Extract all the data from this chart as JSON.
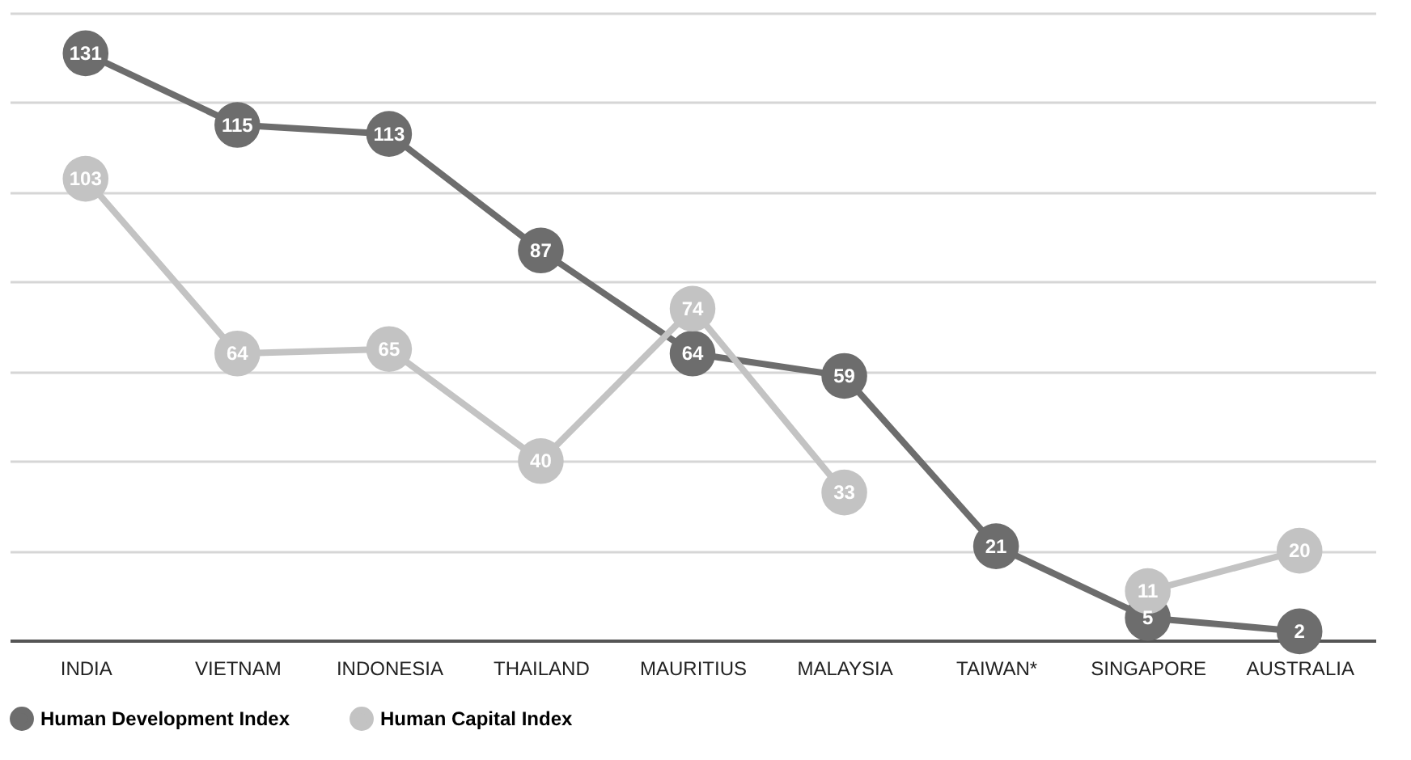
{
  "chart_data": {
    "type": "line",
    "categories": [
      "INDIA",
      "VIETNAM",
      "INDONESIA",
      "THAILAND",
      "MAURITIUS",
      "MALAYSIA",
      "TAIWAN*",
      "SINGAPORE",
      "AUSTRALIA"
    ],
    "series": [
      {
        "name": "Human Development Index",
        "color": "#6d6d6d",
        "values": [
          131,
          115,
          113,
          87,
          64,
          59,
          21,
          5,
          2
        ]
      },
      {
        "name": "Human Capital Index",
        "color": "#c3c3c3",
        "values": [
          103,
          64,
          65,
          40,
          74,
          33,
          null,
          11,
          20
        ]
      }
    ],
    "ylim": [
      0,
      140
    ],
    "yticks": [
      {
        "value": 0,
        "label": null
      },
      {
        "value": 20,
        "label": null
      },
      {
        "value": 40,
        "label": null
      },
      {
        "value": 60,
        "label": null
      },
      {
        "value": 80,
        "label": null
      },
      {
        "value": 100,
        "label": null
      },
      {
        "value": 120,
        "label": null
      },
      {
        "value": 140,
        "label": null
      }
    ],
    "grid": "y",
    "legend": "bottom",
    "tick_labels": "x",
    "marker": "circle",
    "data_labels": true
  }
}
